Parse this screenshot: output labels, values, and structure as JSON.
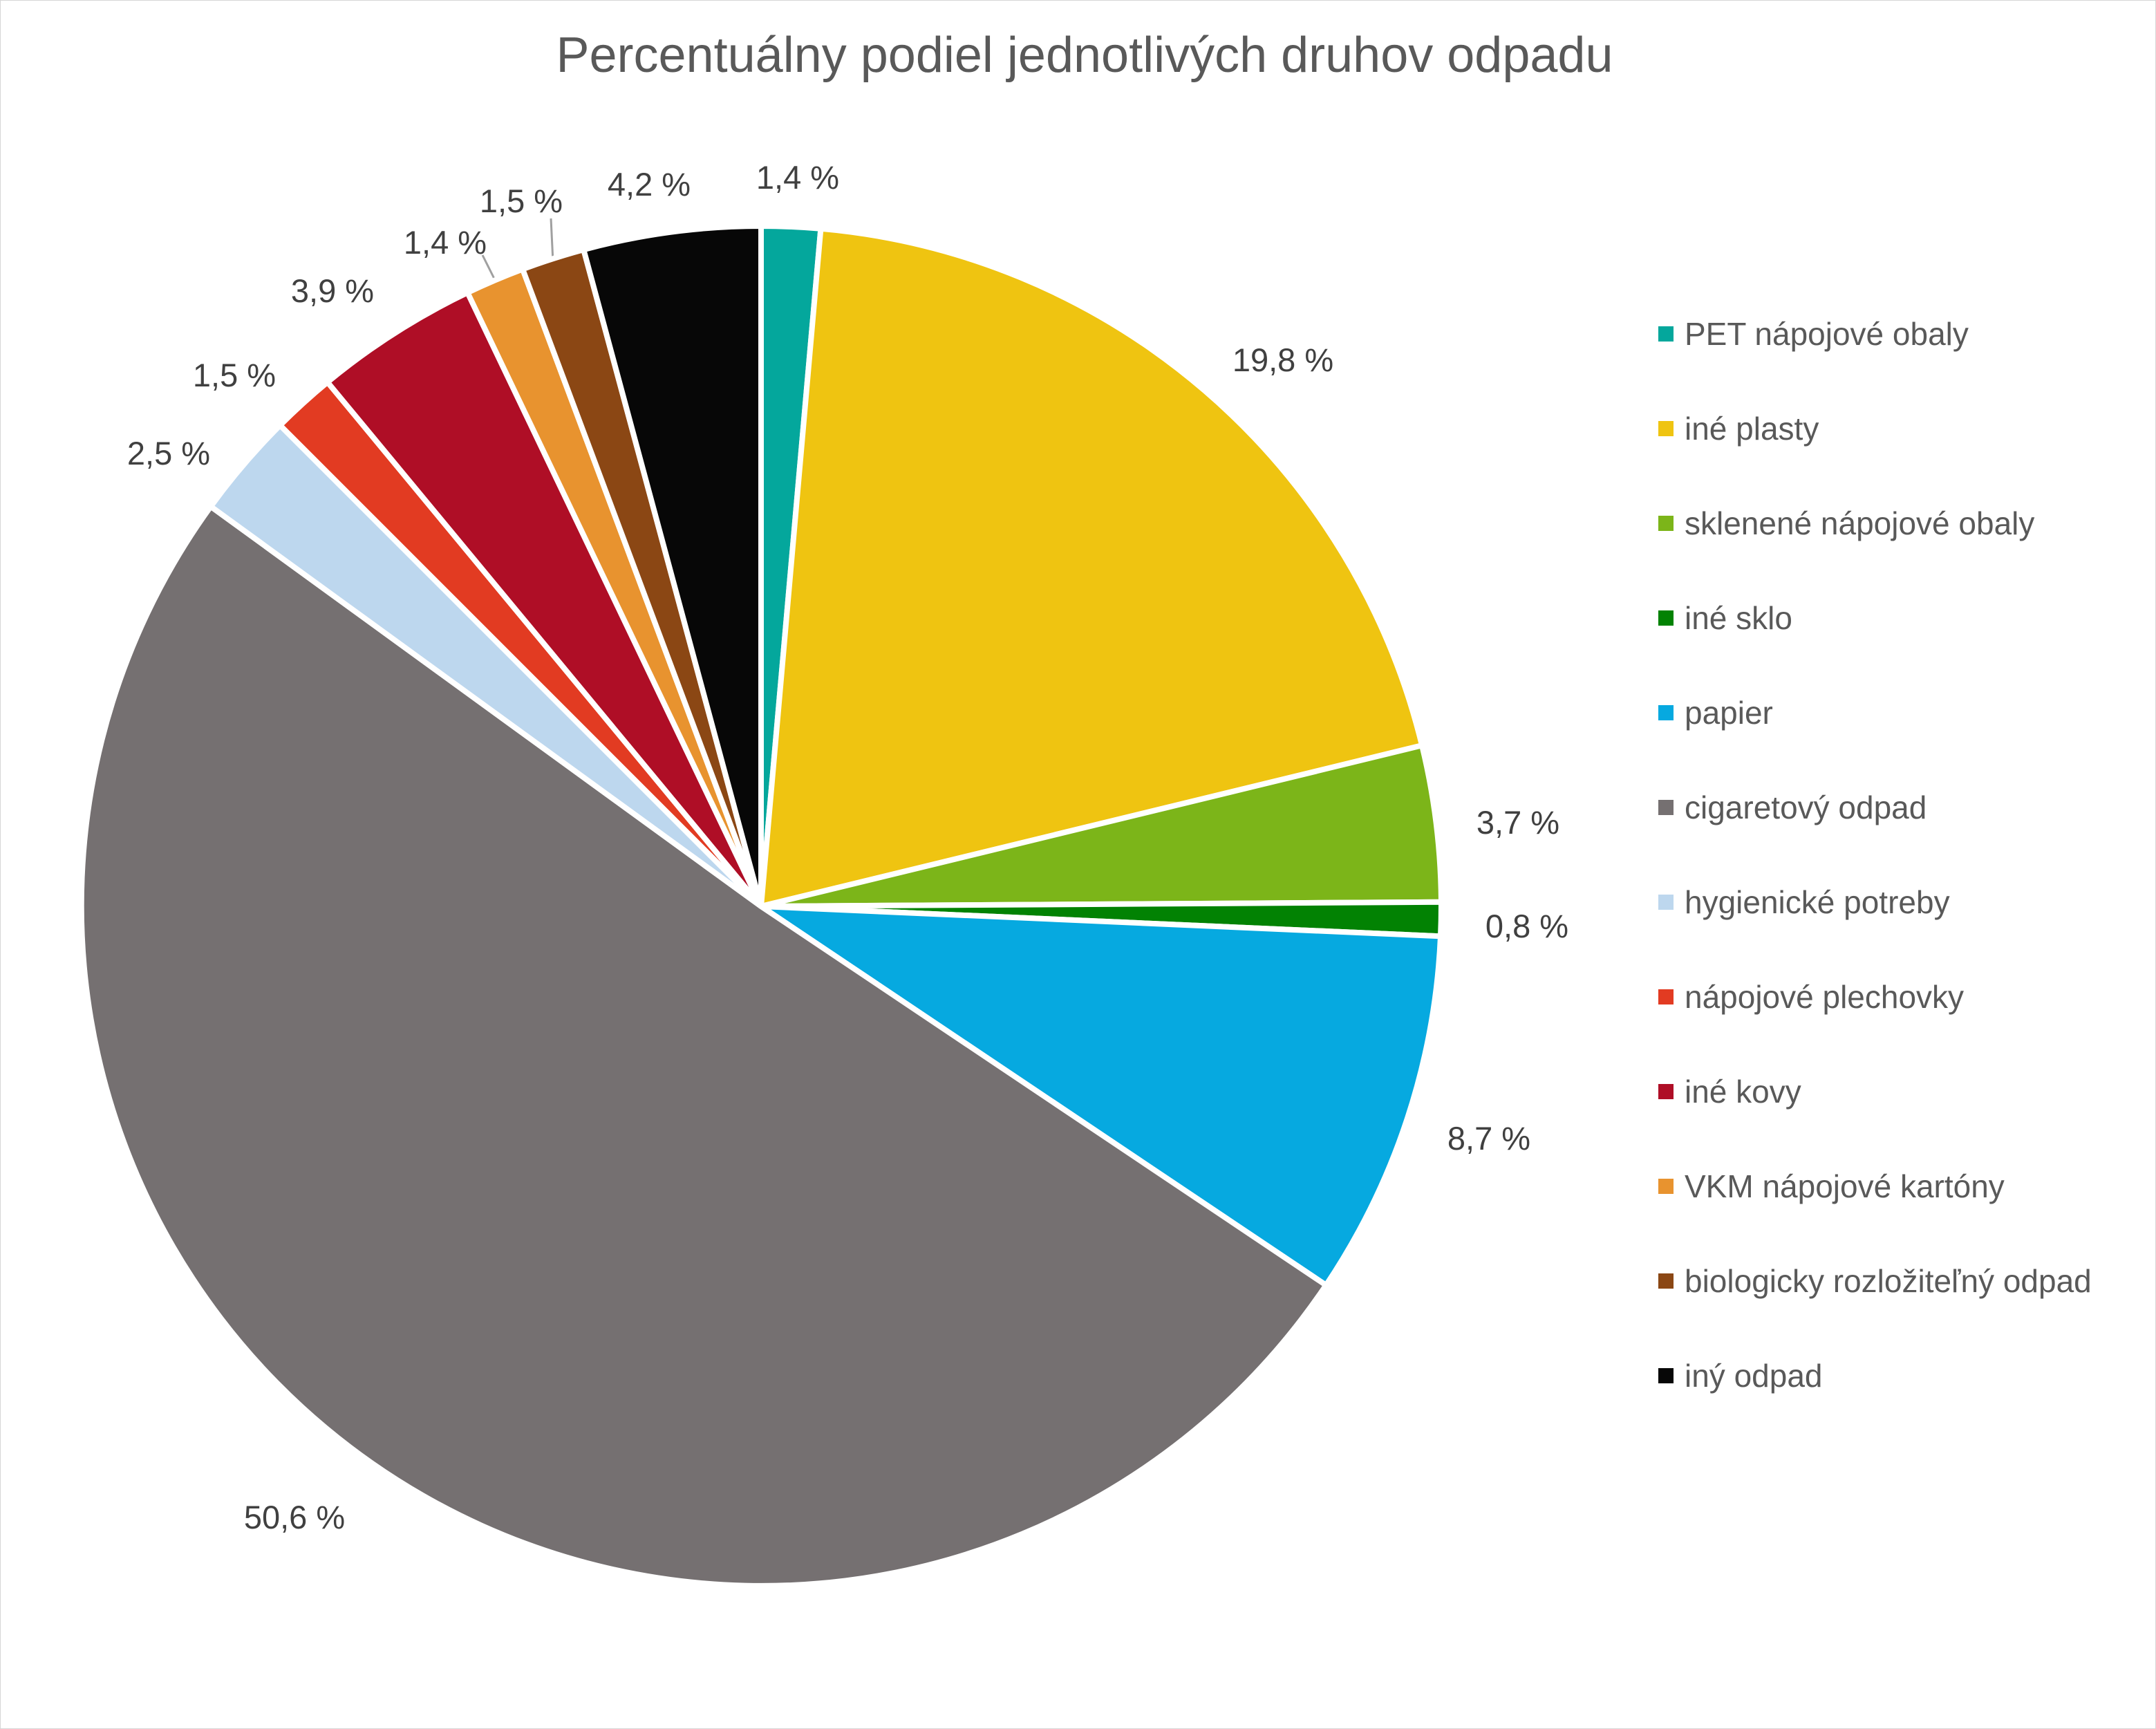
{
  "title": "Percentuálny podiel jednotlivých druhov odpadu",
  "chart_data": {
    "type": "pie",
    "title": "Percentuálny podiel jednotlivých druhov odpadu",
    "start_angle_deg": 0,
    "direction": "clockwise",
    "legend_position": "right",
    "total": 100.0,
    "slices": [
      {
        "label": "PET nápojové obaly",
        "value": 1.4,
        "display": "1,4 %",
        "color": "#04a79c"
      },
      {
        "label": "iné plasty",
        "value": 19.8,
        "display": "19,8 %",
        "color": "#efc411"
      },
      {
        "label": "sklenené nápojové obaly",
        "value": 3.7,
        "display": "3,7 %",
        "color": "#7cb519"
      },
      {
        "label": "iné sklo",
        "value": 0.8,
        "display": "0,8 %",
        "color": "#028203"
      },
      {
        "label": "papier",
        "value": 8.7,
        "display": "8,7 %",
        "color": "#06a9e0"
      },
      {
        "label": "cigaretový odpad",
        "value": 50.6,
        "display": "50,6 %",
        "color": "#757071"
      },
      {
        "label": "hygienické potreby",
        "value": 2.5,
        "display": "2,5 %",
        "color": "#bdd7ee"
      },
      {
        "label": "nápojové plechovky",
        "value": 1.5,
        "display": "1,5 %",
        "color": "#e23b22"
      },
      {
        "label": "iné kovy",
        "value": 3.9,
        "display": "3,9 %",
        "color": "#af0e26"
      },
      {
        "label": "VKM nápojové kartóny",
        "value": 1.4,
        "display": "1,4 %",
        "color": "#e8932f"
      },
      {
        "label": "biologicky rozložiteľný odpad",
        "value": 1.5,
        "display": "1,5 %",
        "color": "#8b4714"
      },
      {
        "label": "iný odpad",
        "value": 4.2,
        "display": "4,2 %",
        "color": "#070707"
      }
    ]
  }
}
